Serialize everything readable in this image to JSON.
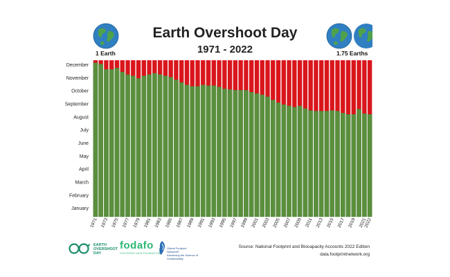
{
  "header": {
    "title": "Earth Overshoot Day",
    "subtitle": "1971 - 2022",
    "left_globe_label": "1 Earth",
    "right_globe_label": "1.75 Earths"
  },
  "footer": {
    "source": "Source: National Footprint and Biocapacity Accounts 2022 Edition",
    "url": "data.footprintnetwork.org",
    "logo_eod": [
      "EARTH",
      "OVERSHOOT",
      "DAY"
    ],
    "logo_fodafo": "fodafo",
    "logo_fodafo_sub": "FOOTPRINT DATA FOUNDATION",
    "logo_gfn": [
      "Global Footprint Network®",
      "Advancing the Science of Sustainability"
    ]
  },
  "colors": {
    "overshoot": "#d9161c",
    "within_budget": "#5a8f3c",
    "bar_edge": "#3e6e25",
    "globe_ocean": "#2f7fc1",
    "globe_land": "#4fa24a"
  },
  "icons": {
    "left_globe": "earth-globe-icon",
    "right_globe": "earth-globe-icon",
    "logo_eod": "earth-overshoot-day-logo",
    "logo_gfn": "global-footprint-network-logo"
  },
  "chart_data": {
    "type": "bar",
    "stacked": true,
    "y_axis_categories": [
      "January",
      "February",
      "March",
      "April",
      "May",
      "June",
      "July",
      "August",
      "September",
      "October",
      "November",
      "December"
    ],
    "x_tick_labels": [
      "1971",
      "1973",
      "1975",
      "1977",
      "1979",
      "1981",
      "1983",
      "1985",
      "1987",
      "1989",
      "1991",
      "1993",
      "1995",
      "1997",
      "1999",
      "2001",
      "2003",
      "2005",
      "2007",
      "2009",
      "2011",
      "2013",
      "2015",
      "2017",
      "2019",
      "2021",
      "2022"
    ],
    "ylim": [
      0,
      12
    ],
    "grid": false,
    "legend": "none",
    "series": [
      {
        "color": "#5a8f3c",
        "x": [
          1971,
          1972,
          1973,
          1974,
          1975,
          1976,
          1977,
          1978,
          1979,
          1980,
          1981,
          1982,
          1983,
          1984,
          1985,
          1986,
          1987,
          1988,
          1989,
          1990,
          1991,
          1992,
          1993,
          1994,
          1995,
          1996,
          1997,
          1998,
          1999,
          2000,
          2001,
          2002,
          2003,
          2004,
          2005,
          2006,
          2007,
          2008,
          2009,
          2010,
          2011,
          2012,
          2013,
          2014,
          2015,
          2016,
          2017,
          2018,
          2019,
          2020,
          2021,
          2022
        ],
        "values": [
          11.8,
          11.7,
          11.3,
          11.3,
          11.4,
          11.1,
          10.9,
          10.8,
          10.6,
          10.8,
          10.9,
          11.0,
          10.9,
          10.8,
          10.7,
          10.5,
          10.3,
          10.1,
          10.0,
          10.0,
          10.1,
          10.05,
          10.05,
          9.95,
          9.8,
          9.75,
          9.7,
          9.7,
          9.7,
          9.55,
          9.45,
          9.35,
          9.2,
          8.95,
          8.75,
          8.6,
          8.5,
          8.4,
          8.5,
          8.3,
          8.15,
          8.1,
          8.1,
          8.1,
          8.15,
          8.1,
          7.95,
          7.85,
          7.85,
          8.25,
          7.9,
          7.85
        ]
      },
      {
        "color": "#d9161c",
        "x": [
          1971,
          1972,
          1973,
          1974,
          1975,
          1976,
          1977,
          1978,
          1979,
          1980,
          1981,
          1982,
          1983,
          1984,
          1985,
          1986,
          1987,
          1988,
          1989,
          1990,
          1991,
          1992,
          1993,
          1994,
          1995,
          1996,
          1997,
          1998,
          1999,
          2000,
          2001,
          2002,
          2003,
          2004,
          2005,
          2006,
          2007,
          2008,
          2009,
          2010,
          2011,
          2012,
          2013,
          2014,
          2015,
          2016,
          2017,
          2018,
          2019,
          2020,
          2021,
          2022
        ],
        "values": [
          0.2,
          0.3,
          0.7,
          0.7,
          0.6,
          0.9,
          1.1,
          1.2,
          1.4,
          1.2,
          1.1,
          1.0,
          1.1,
          1.2,
          1.3,
          1.5,
          1.7,
          1.9,
          2.0,
          2.0,
          1.9,
          1.95,
          1.95,
          2.05,
          2.2,
          2.25,
          2.3,
          2.3,
          2.3,
          2.45,
          2.55,
          2.65,
          2.8,
          3.05,
          3.25,
          3.4,
          3.5,
          3.6,
          3.5,
          3.7,
          3.85,
          3.9,
          3.9,
          3.9,
          3.85,
          3.9,
          4.05,
          4.15,
          4.15,
          3.75,
          4.1,
          4.15
        ]
      }
    ]
  }
}
